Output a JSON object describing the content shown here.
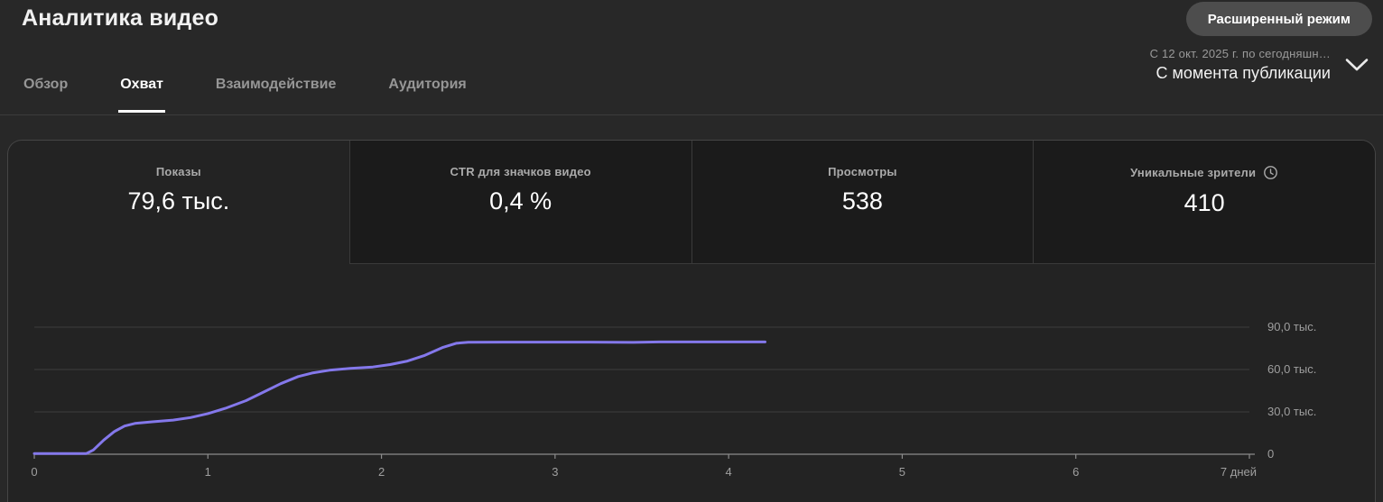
{
  "header": {
    "title": "Аналитика видео",
    "advanced_mode_label": "Расширенный режим"
  },
  "tabs": [
    {
      "label": "Обзор",
      "active": false
    },
    {
      "label": "Охват",
      "active": true
    },
    {
      "label": "Взаимодействие",
      "active": false
    },
    {
      "label": "Аудитория",
      "active": false
    }
  ],
  "date_range": {
    "range_text": "С 12 окт. 2025 г. по сегодняшн…",
    "mode_text": "С момента публикации"
  },
  "metrics": [
    {
      "label": "Показы",
      "value": "79,6 тыс.",
      "selected": true
    },
    {
      "label": "CTR для значков видео",
      "value": "0,4 %",
      "selected": false
    },
    {
      "label": "Просмотры",
      "value": "538",
      "selected": false
    },
    {
      "label": "Уникальные зрители",
      "value": "410",
      "selected": false,
      "icon": "clock-icon"
    }
  ],
  "chart_data": {
    "type": "line",
    "title": "",
    "xlabel": "дней",
    "ylabel": "",
    "xlim": [
      0,
      7
    ],
    "ylim_thousands": [
      0,
      90
    ],
    "grid": true,
    "legend": false,
    "line_color": "#8478eb",
    "grid_color": "#3c3c3c",
    "axis_color": "#8c8c8c",
    "x_ticks": [
      {
        "x": 0,
        "label": "0"
      },
      {
        "x": 1,
        "label": "1"
      },
      {
        "x": 2,
        "label": "2"
      },
      {
        "x": 3,
        "label": "3"
      },
      {
        "x": 4,
        "label": "4"
      },
      {
        "x": 5,
        "label": "5"
      },
      {
        "x": 6,
        "label": "6"
      },
      {
        "x": 7,
        "label": "7 дней"
      }
    ],
    "y_ticks": [
      {
        "thousands": 0,
        "label": "0"
      },
      {
        "thousands": 30,
        "label": "30,0 тыс."
      },
      {
        "thousands": 60,
        "label": "60,0 тыс."
      },
      {
        "thousands": 90,
        "label": "90,0 тыс."
      }
    ],
    "series": [
      {
        "name": "Показы",
        "points_day_thousands": [
          [
            0,
            0.5
          ],
          [
            0.3,
            0.5
          ],
          [
            0.34,
            3
          ],
          [
            0.4,
            10
          ],
          [
            0.46,
            16
          ],
          [
            0.52,
            20
          ],
          [
            0.58,
            21.8
          ],
          [
            0.68,
            23
          ],
          [
            0.8,
            24.2
          ],
          [
            0.9,
            26
          ],
          [
            1.0,
            28.8
          ],
          [
            1.1,
            32.5
          ],
          [
            1.22,
            38
          ],
          [
            1.32,
            44
          ],
          [
            1.42,
            50
          ],
          [
            1.52,
            55
          ],
          [
            1.6,
            57.5
          ],
          [
            1.7,
            59.5
          ],
          [
            1.82,
            60.8
          ],
          [
            1.95,
            61.8
          ],
          [
            2.05,
            63.5
          ],
          [
            2.15,
            66
          ],
          [
            2.25,
            70
          ],
          [
            2.35,
            75.5
          ],
          [
            2.43,
            78.6
          ],
          [
            2.5,
            79.3
          ],
          [
            2.7,
            79.4
          ],
          [
            3.2,
            79.4
          ],
          [
            3.45,
            79.2
          ],
          [
            3.6,
            79.5
          ],
          [
            4.21,
            79.5
          ]
        ]
      }
    ]
  },
  "colors": {
    "page_bg": "#282828",
    "card_bg": "#232323",
    "metric_unselected_bg": "#1b1b1b",
    "accent_line": "#8478eb",
    "muted_text": "#9f9f9f"
  }
}
